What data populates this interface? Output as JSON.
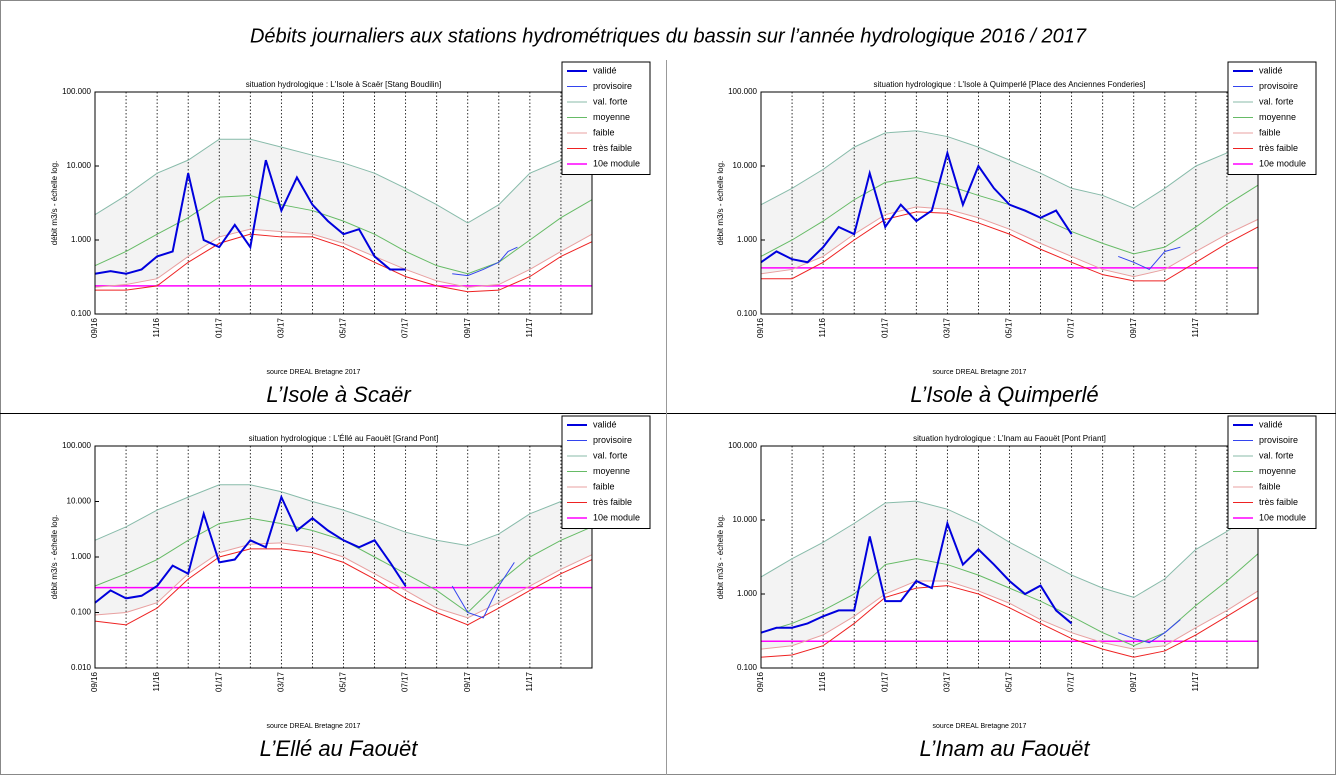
{
  "title": "Débits journaliers aux stations hydrométriques du bassin sur l’année hydrologique 2016 / 2017",
  "chart_data": [
    {
      "type": "line",
      "title": "situation hydrologique : L'Isole à Scaër [Stang Boudilin]",
      "caption": "L’Isole à Scaër",
      "source": "source DREAL Bretagne 2017",
      "ylabel": "débit m3/s - échelle log.",
      "yscale": "log",
      "legend": "upper right",
      "xgrid": true,
      "xlim": [
        0,
        16
      ],
      "ylim": [
        0.1,
        100
      ],
      "yticks": [
        {
          "value": 0.1,
          "label": "0.100"
        },
        {
          "value": 1,
          "label": "1.000"
        },
        {
          "value": 10,
          "label": "10.000"
        },
        {
          "value": 100,
          "label": "100.000"
        }
      ],
      "xticks": [
        {
          "value": 0,
          "label": "09/16"
        },
        {
          "value": 2,
          "label": "11/16"
        },
        {
          "value": 4,
          "label": "01/17"
        },
        {
          "value": 6,
          "label": "03/17"
        },
        {
          "value": 8,
          "label": "05/17"
        },
        {
          "value": 10,
          "label": "07/17"
        },
        {
          "value": 12,
          "label": "09/17"
        },
        {
          "value": 14,
          "label": "11/17"
        }
      ],
      "xminorticks": [
        1,
        3,
        5,
        7,
        9,
        11,
        13,
        15
      ],
      "x": [
        0,
        1,
        2,
        3,
        4,
        5,
        6,
        7,
        8,
        9,
        10,
        11,
        12,
        13,
        14,
        15,
        16
      ],
      "series": [
        {
          "name": "validé",
          "color": "#0000dd",
          "linewidth": 2,
          "x": [
            0,
            0.5,
            1,
            1.5,
            2,
            2.5,
            3,
            3.5,
            4,
            4.5,
            5,
            5.5,
            6,
            6.5,
            7,
            7.5,
            8,
            8.5,
            9,
            9.5,
            10
          ],
          "values": [
            0.35,
            0.38,
            0.35,
            0.4,
            0.6,
            0.7,
            8,
            1.0,
            0.8,
            1.6,
            0.8,
            12,
            2.5,
            7,
            3,
            1.8,
            1.2,
            1.4,
            0.6,
            0.4,
            0.4
          ]
        },
        {
          "name": "provisoire",
          "color": "#3344ee",
          "linewidth": 1,
          "x": [
            11.5,
            12,
            12.5,
            13,
            13.3,
            13.6
          ],
          "values": [
            0.35,
            0.33,
            0.4,
            0.5,
            0.7,
            0.8
          ]
        },
        {
          "name": "val. forte",
          "color": "#88bbaa",
          "linewidth": 1,
          "values": [
            2.2,
            4,
            8,
            12,
            23,
            23,
            18,
            14,
            11,
            8,
            5,
            3,
            1.7,
            3,
            8,
            12,
            20
          ]
        },
        {
          "name": "moyenne",
          "color": "#66bb66",
          "linewidth": 1,
          "values": [
            0.45,
            0.7,
            1.2,
            2,
            3.8,
            4,
            3,
            2.5,
            1.8,
            1.2,
            0.7,
            0.45,
            0.35,
            0.5,
            1,
            2,
            3.5
          ]
        },
        {
          "name": "faible",
          "color": "#e8a0a0",
          "linewidth": 1,
          "values": [
            0.23,
            0.25,
            0.3,
            0.6,
            1.1,
            1.4,
            1.3,
            1.2,
            0.9,
            0.6,
            0.4,
            0.28,
            0.23,
            0.25,
            0.4,
            0.7,
            1.2
          ]
        },
        {
          "name": "très faible",
          "color": "#ee2222",
          "linewidth": 1,
          "values": [
            0.21,
            0.21,
            0.24,
            0.5,
            0.9,
            1.2,
            1.1,
            1.1,
            0.8,
            0.5,
            0.32,
            0.24,
            0.2,
            0.21,
            0.32,
            0.6,
            0.95
          ]
        },
        {
          "name": "10e module",
          "color": "#ff00ff",
          "linewidth": 1.5,
          "x": [
            0,
            16
          ],
          "values": [
            0.24,
            0.24
          ]
        }
      ]
    },
    {
      "type": "line",
      "title": "situation hydrologique : L'Isole à Quimperlé [Place des Anciennes Fonderies]",
      "caption": "L’Isole à Quimperlé",
      "source": "source DREAL Bretagne 2017",
      "ylabel": "débit m3/s - échelle log.",
      "yscale": "log",
      "legend": "upper right",
      "xgrid": true,
      "xlim": [
        0,
        16
      ],
      "ylim": [
        0.1,
        100
      ],
      "yticks": [
        {
          "value": 0.1,
          "label": "0.100"
        },
        {
          "value": 1,
          "label": "1.000"
        },
        {
          "value": 10,
          "label": "10.000"
        },
        {
          "value": 100,
          "label": "100.000"
        }
      ],
      "xticks": [
        {
          "value": 0,
          "label": "09/16"
        },
        {
          "value": 2,
          "label": "11/16"
        },
        {
          "value": 4,
          "label": "01/17"
        },
        {
          "value": 6,
          "label": "03/17"
        },
        {
          "value": 8,
          "label": "05/17"
        },
        {
          "value": 10,
          "label": "07/17"
        },
        {
          "value": 12,
          "label": "09/17"
        },
        {
          "value": 14,
          "label": "11/17"
        }
      ],
      "xminorticks": [
        1,
        3,
        5,
        7,
        9,
        11,
        13,
        15
      ],
      "x": [
        0,
        1,
        2,
        3,
        4,
        5,
        6,
        7,
        8,
        9,
        10,
        11,
        12,
        13,
        14,
        15,
        16
      ],
      "series": [
        {
          "name": "validé",
          "color": "#0000dd",
          "linewidth": 2,
          "x": [
            0,
            0.5,
            1,
            1.5,
            2,
            2.5,
            3,
            3.5,
            4,
            4.5,
            5,
            5.5,
            6,
            6.5,
            7,
            7.5,
            8,
            8.5,
            9,
            9.5,
            10
          ],
          "values": [
            0.5,
            0.7,
            0.55,
            0.5,
            0.8,
            1.5,
            1.2,
            8,
            1.5,
            3,
            1.8,
            2.5,
            15,
            3,
            10,
            5,
            3,
            2.5,
            2,
            2.5,
            1.2
          ]
        },
        {
          "name": "provisoire",
          "color": "#3344ee",
          "linewidth": 1,
          "x": [
            11.5,
            12,
            12.5,
            13,
            13.5
          ],
          "values": [
            0.6,
            0.5,
            0.4,
            0.7,
            0.8
          ]
        },
        {
          "name": "val. forte",
          "color": "#88bbaa",
          "linewidth": 1,
          "values": [
            3,
            5,
            9,
            18,
            28,
            30,
            25,
            18,
            12,
            8,
            5,
            4,
            2.7,
            5,
            10,
            15,
            25
          ]
        },
        {
          "name": "moyenne",
          "color": "#66bb66",
          "linewidth": 1,
          "values": [
            0.6,
            1,
            1.8,
            3.5,
            6,
            7,
            5.5,
            4,
            3,
            2,
            1.3,
            0.9,
            0.65,
            0.8,
            1.5,
            3,
            5.5
          ]
        },
        {
          "name": "faible",
          "color": "#e8a0a0",
          "linewidth": 1,
          "values": [
            0.35,
            0.4,
            0.6,
            1.2,
            2.2,
            2.8,
            2.6,
            2,
            1.4,
            0.9,
            0.6,
            0.4,
            0.32,
            0.4,
            0.7,
            1.2,
            1.9
          ]
        },
        {
          "name": "très faible",
          "color": "#ee2222",
          "linewidth": 1,
          "values": [
            0.3,
            0.3,
            0.5,
            1,
            1.9,
            2.4,
            2.3,
            1.7,
            1.2,
            0.75,
            0.5,
            0.34,
            0.28,
            0.28,
            0.5,
            0.9,
            1.5
          ]
        },
        {
          "name": "10e module",
          "color": "#ff00ff",
          "linewidth": 1.5,
          "x": [
            0,
            16
          ],
          "values": [
            0.42,
            0.42
          ]
        }
      ]
    },
    {
      "type": "line",
      "title": "situation hydrologique : L'Éllé au Faouët [Grand Pont]",
      "caption": "L’Ellé au Faouët",
      "source": "source DREAL Bretagne 2017",
      "ylabel": "débit m3/s - échelle log.",
      "yscale": "log",
      "legend": "upper right",
      "xgrid": true,
      "xlim": [
        0,
        16
      ],
      "ylim": [
        0.01,
        100
      ],
      "yticks": [
        {
          "value": 0.01,
          "label": "0.010"
        },
        {
          "value": 0.1,
          "label": "0.100"
        },
        {
          "value": 1,
          "label": "1.000"
        },
        {
          "value": 10,
          "label": "10.000"
        },
        {
          "value": 100,
          "label": "100.000"
        }
      ],
      "xticks": [
        {
          "value": 0,
          "label": "09/16"
        },
        {
          "value": 2,
          "label": "11/16"
        },
        {
          "value": 4,
          "label": "01/17"
        },
        {
          "value": 6,
          "label": "03/17"
        },
        {
          "value": 8,
          "label": "05/17"
        },
        {
          "value": 10,
          "label": "07/17"
        },
        {
          "value": 12,
          "label": "09/17"
        },
        {
          "value": 14,
          "label": "11/17"
        }
      ],
      "xminorticks": [
        1,
        3,
        5,
        7,
        9,
        11,
        13,
        15
      ],
      "x": [
        0,
        1,
        2,
        3,
        4,
        5,
        6,
        7,
        8,
        9,
        10,
        11,
        12,
        13,
        14,
        15,
        16
      ],
      "series": [
        {
          "name": "validé",
          "color": "#0000dd",
          "linewidth": 2,
          "x": [
            0,
            0.5,
            1,
            1.5,
            2,
            2.5,
            3,
            3.5,
            4,
            4.5,
            5,
            5.5,
            6,
            6.5,
            7,
            7.5,
            8,
            8.5,
            9,
            9.5,
            10
          ],
          "values": [
            0.15,
            0.25,
            0.18,
            0.2,
            0.3,
            0.7,
            0.5,
            6,
            0.8,
            0.9,
            2,
            1.5,
            12,
            3,
            5,
            3,
            2,
            1.5,
            2,
            0.8,
            0.3
          ]
        },
        {
          "name": "provisoire",
          "color": "#3344ee",
          "linewidth": 1,
          "x": [
            11.5,
            12,
            12.5,
            13,
            13.5
          ],
          "values": [
            0.3,
            0.1,
            0.08,
            0.3,
            0.8
          ]
        },
        {
          "name": "val. forte",
          "color": "#88bbaa",
          "linewidth": 1,
          "values": [
            2,
            3.5,
            7,
            12,
            20,
            20,
            15,
            10,
            7,
            4.5,
            2.8,
            2,
            1.6,
            2.6,
            6,
            10,
            18
          ]
        },
        {
          "name": "moyenne",
          "color": "#66bb66",
          "linewidth": 1,
          "values": [
            0.3,
            0.5,
            0.9,
            2,
            4,
            5,
            4,
            3,
            2,
            1,
            0.5,
            0.25,
            0.1,
            0.35,
            1,
            2,
            3.5
          ]
        },
        {
          "name": "faible",
          "color": "#e8a0a0",
          "linewidth": 1,
          "values": [
            0.09,
            0.1,
            0.15,
            0.5,
            1.2,
            1.7,
            1.8,
            1.5,
            1,
            0.5,
            0.25,
            0.12,
            0.08,
            0.15,
            0.3,
            0.6,
            1.1
          ]
        },
        {
          "name": "très faible",
          "color": "#ee2222",
          "linewidth": 1,
          "values": [
            0.07,
            0.06,
            0.12,
            0.4,
            1,
            1.4,
            1.4,
            1.2,
            0.8,
            0.4,
            0.18,
            0.1,
            0.06,
            0.12,
            0.25,
            0.5,
            0.9
          ]
        },
        {
          "name": "10e module",
          "color": "#ff00ff",
          "linewidth": 1.5,
          "x": [
            0,
            16
          ],
          "values": [
            0.28,
            0.28
          ]
        }
      ]
    },
    {
      "type": "line",
      "title": "situation hydrologique : L'Inam au Faouët [Pont Priant]",
      "caption": "L’Inam au Faouët",
      "source": "source DREAL Bretagne 2017",
      "ylabel": "débit m3/s - échelle log.",
      "yscale": "log",
      "legend": "upper right",
      "xgrid": true,
      "xlim": [
        0,
        16
      ],
      "ylim": [
        0.1,
        100
      ],
      "yticks": [
        {
          "value": 0.1,
          "label": "0.100"
        },
        {
          "value": 1,
          "label": "1.000"
        },
        {
          "value": 10,
          "label": "10.000"
        },
        {
          "value": 100,
          "label": "100.000"
        }
      ],
      "xticks": [
        {
          "value": 0,
          "label": "09/16"
        },
        {
          "value": 2,
          "label": "11/16"
        },
        {
          "value": 4,
          "label": "01/17"
        },
        {
          "value": 6,
          "label": "03/17"
        },
        {
          "value": 8,
          "label": "05/17"
        },
        {
          "value": 10,
          "label": "07/17"
        },
        {
          "value": 12,
          "label": "09/17"
        },
        {
          "value": 14,
          "label": "11/17"
        }
      ],
      "xminorticks": [
        1,
        3,
        5,
        7,
        9,
        11,
        13,
        15
      ],
      "x": [
        0,
        1,
        2,
        3,
        4,
        5,
        6,
        7,
        8,
        9,
        10,
        11,
        12,
        13,
        14,
        15,
        16
      ],
      "series": [
        {
          "name": "validé",
          "color": "#0000dd",
          "linewidth": 2,
          "x": [
            0,
            0.5,
            1,
            1.5,
            2,
            2.5,
            3,
            3.5,
            4,
            4.5,
            5,
            5.5,
            6,
            6.5,
            7,
            7.5,
            8,
            8.5,
            9,
            9.5,
            10
          ],
          "values": [
            0.3,
            0.35,
            0.35,
            0.4,
            0.5,
            0.6,
            0.6,
            6,
            0.8,
            0.8,
            1.5,
            1.2,
            9,
            2.5,
            4,
            2.5,
            1.5,
            1,
            1.3,
            0.6,
            0.4
          ]
        },
        {
          "name": "provisoire",
          "color": "#3344ee",
          "linewidth": 1,
          "x": [
            11.5,
            12,
            12.5,
            13,
            13.5
          ],
          "values": [
            0.3,
            0.25,
            0.22,
            0.3,
            0.45
          ]
        },
        {
          "name": "val. forte",
          "color": "#88bbaa",
          "linewidth": 1,
          "values": [
            1.7,
            3,
            5,
            9,
            17,
            18,
            14,
            9,
            5,
            3,
            1.8,
            1.2,
            0.9,
            1.6,
            4,
            7,
            14
          ]
        },
        {
          "name": "moyenne",
          "color": "#66bb66",
          "linewidth": 1,
          "values": [
            0.3,
            0.4,
            0.6,
            1,
            2.5,
            3,
            2.5,
            1.8,
            1.2,
            0.8,
            0.5,
            0.3,
            0.2,
            0.3,
            0.7,
            1.5,
            3.5
          ]
        },
        {
          "name": "faible",
          "color": "#e8a0a0",
          "linewidth": 1,
          "values": [
            0.18,
            0.2,
            0.28,
            0.5,
            1,
            1.5,
            1.5,
            1.1,
            0.75,
            0.45,
            0.3,
            0.22,
            0.18,
            0.2,
            0.35,
            0.6,
            1.1
          ]
        },
        {
          "name": "très faible",
          "color": "#ee2222",
          "linewidth": 1,
          "values": [
            0.14,
            0.15,
            0.2,
            0.4,
            0.9,
            1.2,
            1.3,
            1,
            0.65,
            0.4,
            0.25,
            0.18,
            0.14,
            0.17,
            0.28,
            0.5,
            0.9
          ]
        },
        {
          "name": "10e module",
          "color": "#ff00ff",
          "linewidth": 1.5,
          "x": [
            0,
            16
          ],
          "values": [
            0.23,
            0.23
          ]
        }
      ]
    }
  ]
}
